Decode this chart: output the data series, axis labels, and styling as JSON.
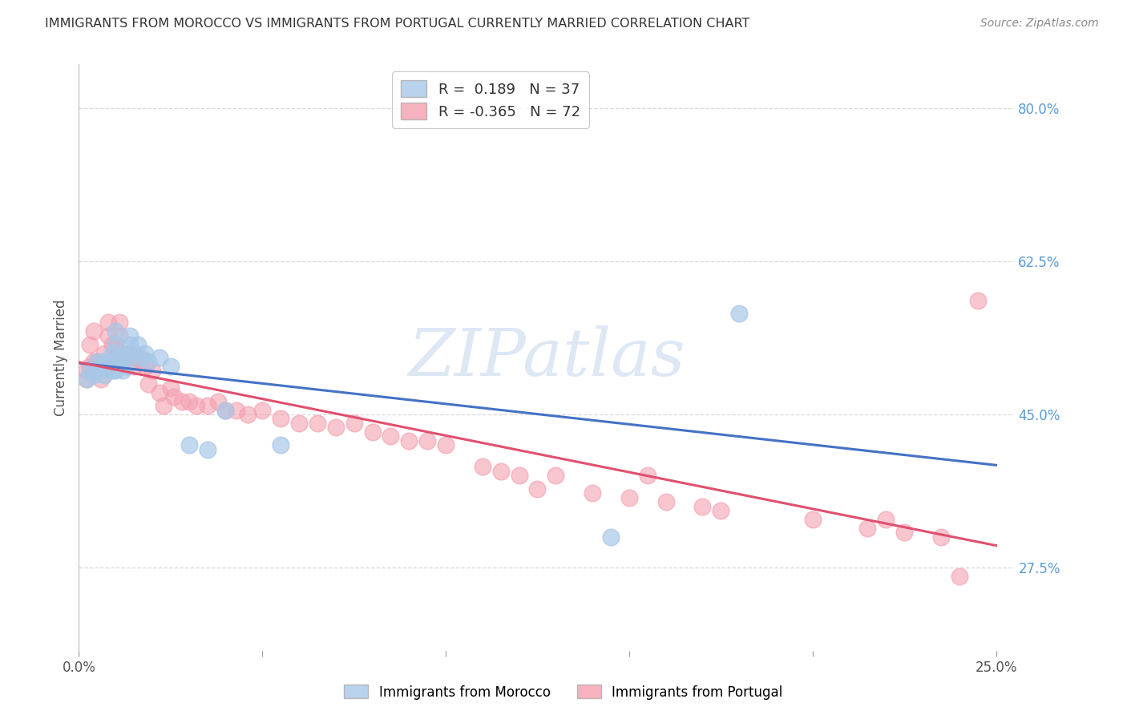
{
  "title": "IMMIGRANTS FROM MOROCCO VS IMMIGRANTS FROM PORTUGAL CURRENTLY MARRIED CORRELATION CHART",
  "source": "Source: ZipAtlas.com",
  "ylabel": "Currently Married",
  "right_yticks": [
    "80.0%",
    "62.5%",
    "45.0%",
    "27.5%"
  ],
  "right_ytick_vals": [
    0.8,
    0.625,
    0.45,
    0.275
  ],
  "watermark_text": "ZIPatlas",
  "legend_labels": [
    "R =  0.189   N = 37",
    "R = -0.365   N = 72"
  ],
  "bottom_legend_labels": [
    "Immigrants from Morocco",
    "Immigrants from Portugal"
  ],
  "morocco_color": "#a8c8e8",
  "portugal_color": "#f4a0b0",
  "morocco_line_color": "#4472c4",
  "portugal_line_color": "#e05070",
  "morocco_scatter": {
    "x": [
      0.002,
      0.003,
      0.004,
      0.005,
      0.005,
      0.006,
      0.006,
      0.007,
      0.007,
      0.008,
      0.008,
      0.009,
      0.009,
      0.01,
      0.01,
      0.01,
      0.011,
      0.011,
      0.012,
      0.012,
      0.013,
      0.013,
      0.014,
      0.014,
      0.015,
      0.016,
      0.017,
      0.018,
      0.019,
      0.022,
      0.025,
      0.03,
      0.035,
      0.04,
      0.055,
      0.145,
      0.18
    ],
    "y": [
      0.49,
      0.5,
      0.495,
      0.51,
      0.5,
      0.505,
      0.5,
      0.51,
      0.495,
      0.505,
      0.51,
      0.52,
      0.5,
      0.53,
      0.545,
      0.5,
      0.51,
      0.515,
      0.5,
      0.515,
      0.52,
      0.505,
      0.53,
      0.54,
      0.52,
      0.53,
      0.515,
      0.52,
      0.51,
      0.515,
      0.505,
      0.415,
      0.41,
      0.455,
      0.415,
      0.31,
      0.565
    ]
  },
  "portugal_scatter": {
    "x": [
      0.002,
      0.002,
      0.003,
      0.003,
      0.004,
      0.004,
      0.005,
      0.005,
      0.006,
      0.006,
      0.007,
      0.007,
      0.008,
      0.008,
      0.009,
      0.009,
      0.01,
      0.01,
      0.011,
      0.011,
      0.012,
      0.012,
      0.013,
      0.014,
      0.015,
      0.015,
      0.016,
      0.017,
      0.018,
      0.019,
      0.02,
      0.022,
      0.023,
      0.025,
      0.026,
      0.028,
      0.03,
      0.032,
      0.035,
      0.038,
      0.04,
      0.043,
      0.046,
      0.05,
      0.055,
      0.06,
      0.065,
      0.07,
      0.075,
      0.08,
      0.085,
      0.09,
      0.095,
      0.1,
      0.11,
      0.115,
      0.12,
      0.125,
      0.13,
      0.14,
      0.15,
      0.155,
      0.16,
      0.17,
      0.175,
      0.2,
      0.215,
      0.22,
      0.225,
      0.235,
      0.24,
      0.245
    ],
    "y": [
      0.5,
      0.49,
      0.505,
      0.53,
      0.51,
      0.545,
      0.5,
      0.51,
      0.505,
      0.49,
      0.51,
      0.52,
      0.54,
      0.555,
      0.51,
      0.53,
      0.52,
      0.53,
      0.555,
      0.54,
      0.52,
      0.51,
      0.515,
      0.52,
      0.515,
      0.505,
      0.515,
      0.51,
      0.505,
      0.485,
      0.5,
      0.475,
      0.46,
      0.48,
      0.47,
      0.465,
      0.465,
      0.46,
      0.46,
      0.465,
      0.455,
      0.455,
      0.45,
      0.455,
      0.445,
      0.44,
      0.44,
      0.435,
      0.44,
      0.43,
      0.425,
      0.42,
      0.42,
      0.415,
      0.39,
      0.385,
      0.38,
      0.365,
      0.38,
      0.36,
      0.355,
      0.38,
      0.35,
      0.345,
      0.34,
      0.33,
      0.32,
      0.33,
      0.315,
      0.31,
      0.265,
      0.58
    ]
  },
  "xlim": [
    0.0,
    0.255
  ],
  "ylim": [
    0.18,
    0.85
  ],
  "background_color": "#ffffff",
  "grid_color": "#d8d8d8",
  "title_fontsize": 11.5,
  "source_fontsize": 10,
  "axis_label_fontsize": 12,
  "tick_fontsize": 12,
  "legend_fontsize": 13,
  "watermark_fontsize": 60
}
